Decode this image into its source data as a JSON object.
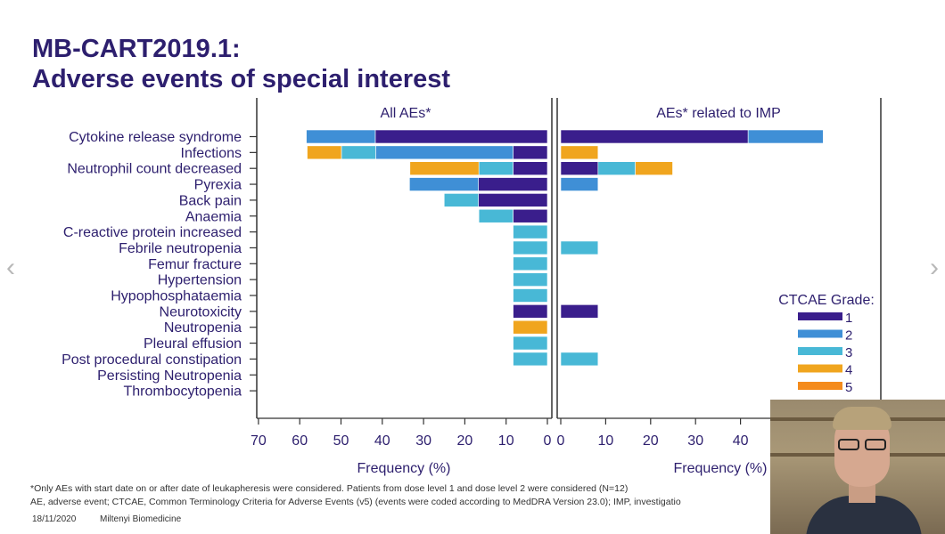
{
  "slide": {
    "title_line1": "MB-CART2019.1:",
    "title_line2": "Adverse events of special interest",
    "footnote1": "*Only AEs with start date on or after date of leukapheresis were considered. Patients from dose level 1 and dose level 2 were considered (N=12)",
    "footnote2": "AE, adverse event; CTCAE, Common Terminology Criteria for Adverse Events (v5) (events were coded according to MedDRA Version 23.0); IMP, investigatio",
    "date": "18/11/2020",
    "company": "Miltenyi Biomedicine",
    "prev_icon": "chevron-left-icon",
    "next_icon": "chevron-right-icon",
    "prev_glyph": "‹",
    "next_glyph": "›",
    "webcam_label": "presenter-webcam"
  },
  "colors": {
    "title": "#2d1f6e",
    "grade1": "#3a1e8c",
    "grade2": "#3f8fd6",
    "grade3": "#48b8d6",
    "grade4": "#f0a51e",
    "grade5": "#f48b1c"
  },
  "chart_data": {
    "type": "bar",
    "orientation": "horizontal-stacked-butterfly",
    "categories": [
      "Cytokine release syndrome",
      "Infections",
      "Neutrophil count decreased",
      "Pyrexia",
      "Back pain",
      "Anaemia",
      "C-reactive protein increased",
      "Febrile neutropenia",
      "Femur fracture",
      "Hypertension",
      "Hypophosphataemia",
      "Neurotoxicity",
      "Neutropenia",
      "Pleural effusion",
      "Post procedural constipation",
      "Persisting Neutropenia",
      "Thrombocytopenia"
    ],
    "legend_title": "CTCAE Grade:",
    "grades": [
      "1",
      "2",
      "3",
      "4",
      "5"
    ],
    "panels": [
      {
        "title": "All AEs*",
        "xlabel": "Frequency (%)",
        "xlim": [
          0,
          70
        ],
        "ticks": [
          "70",
          "60",
          "50",
          "40",
          "30",
          "20",
          "10",
          "0"
        ],
        "reversed": true,
        "segments": [
          [
            41.7,
            16.7,
            0,
            0,
            0
          ],
          [
            8.3,
            33.3,
            8.3,
            8.3,
            0
          ],
          [
            8.3,
            0,
            8.3,
            16.7,
            0
          ],
          [
            16.7,
            16.7,
            0,
            0,
            0
          ],
          [
            16.7,
            0,
            8.3,
            0,
            0
          ],
          [
            8.3,
            0,
            8.3,
            0,
            0
          ],
          [
            0,
            0,
            8.3,
            0,
            0
          ],
          [
            0,
            0,
            8.3,
            0,
            0
          ],
          [
            0,
            0,
            8.3,
            0,
            0
          ],
          [
            0,
            0,
            8.3,
            0,
            0
          ],
          [
            0,
            0,
            8.3,
            0,
            0
          ],
          [
            8.3,
            0,
            0,
            0,
            0
          ],
          [
            0,
            0,
            0,
            8.3,
            0
          ],
          [
            0,
            0,
            8.3,
            0,
            0
          ],
          [
            0,
            0,
            8.3,
            0,
            0
          ],
          [
            0,
            0,
            0,
            0,
            0
          ],
          [
            0,
            0,
            0,
            0,
            0
          ]
        ]
      },
      {
        "title": "AEs* related to IMP",
        "xlabel": "Frequency (%)",
        "xlim": [
          0,
          70
        ],
        "ticks": [
          "0",
          "10",
          "20",
          "30",
          "40"
        ],
        "reversed": false,
        "segments": [
          [
            41.7,
            16.7,
            0,
            0,
            0
          ],
          [
            0,
            0,
            0,
            8.3,
            0
          ],
          [
            8.3,
            0,
            8.3,
            8.3,
            0
          ],
          [
            0,
            8.3,
            0,
            0,
            0
          ],
          [
            0,
            0,
            0,
            0,
            0
          ],
          [
            0,
            0,
            0,
            0,
            0
          ],
          [
            0,
            0,
            0,
            0,
            0
          ],
          [
            0,
            0,
            8.3,
            0,
            0
          ],
          [
            0,
            0,
            0,
            0,
            0
          ],
          [
            0,
            0,
            0,
            0,
            0
          ],
          [
            0,
            0,
            0,
            0,
            0
          ],
          [
            8.3,
            0,
            0,
            0,
            0
          ],
          [
            0,
            0,
            0,
            0,
            0
          ],
          [
            0,
            0,
            0,
            0,
            0
          ],
          [
            0,
            0,
            8.3,
            0,
            0
          ],
          [
            0,
            0,
            0,
            0,
            0
          ],
          [
            0,
            0,
            0,
            0,
            0
          ]
        ]
      }
    ]
  }
}
